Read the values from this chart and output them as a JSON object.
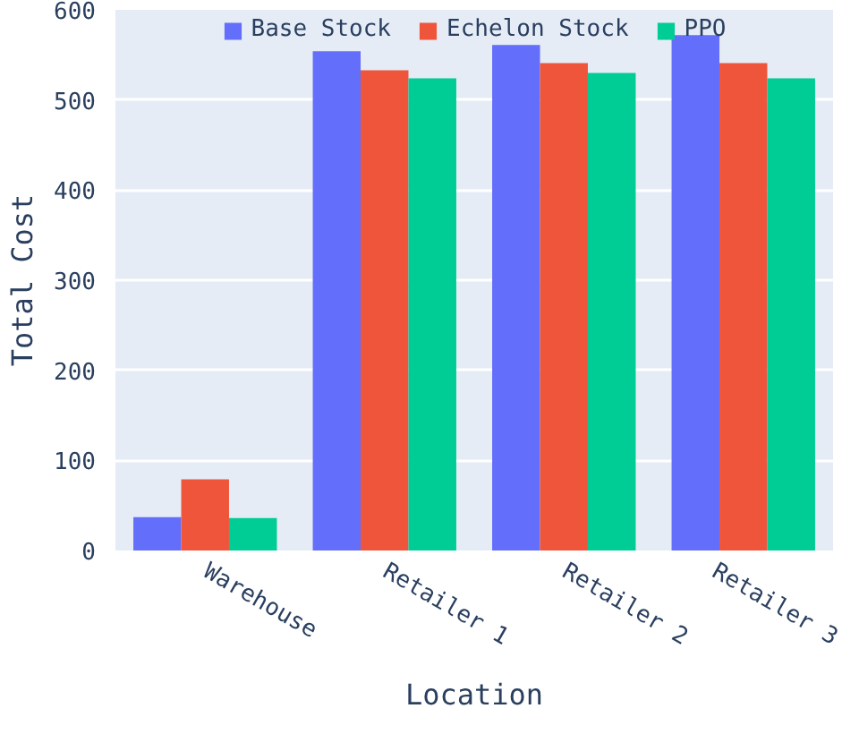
{
  "chart_data": {
    "type": "bar",
    "xlabel": "Location",
    "ylabel": "Total Cost",
    "categories": [
      "Warehouse",
      "Retailer 1",
      "Retailer 2",
      "Retailer 3"
    ],
    "series": [
      {
        "name": "Base Stock",
        "color": "#636efa",
        "values": [
          37,
          554,
          561,
          572
        ]
      },
      {
        "name": "Echelon Stock",
        "color": "#ef553b",
        "values": [
          79,
          533,
          541,
          541
        ]
      },
      {
        "name": "PPO",
        "color": "#00cc96",
        "values": [
          36,
          524,
          530,
          524
        ]
      }
    ],
    "ylim": [
      0,
      600
    ],
    "yticks": [
      0,
      100,
      200,
      300,
      400,
      500,
      600
    ],
    "grid": "y",
    "legend": "top"
  }
}
